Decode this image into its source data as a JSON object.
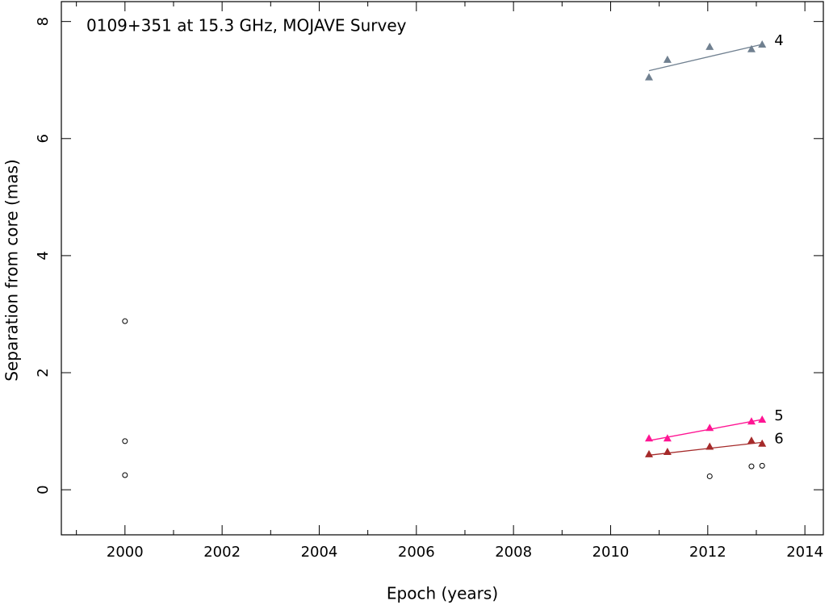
{
  "chart_data": {
    "type": "scatter",
    "title": "0109+351 at 15.3 GHz, MOJAVE Survey",
    "xlabel": "Epoch (years)",
    "ylabel": "Separation from core (mas)",
    "xlim": [
      1998.69,
      2014.38
    ],
    "ylim": [
      -0.77,
      8.34
    ],
    "xticks": [
      2000,
      2002,
      2004,
      2006,
      2008,
      2010,
      2012,
      2014
    ],
    "xticks_minor": [
      1999,
      2001,
      2003,
      2005,
      2007,
      2009,
      2011,
      2013
    ],
    "yticks": [
      0,
      2,
      4,
      6,
      8
    ],
    "series": [
      {
        "name": "4",
        "color": "#708090",
        "label_color": "#a8a8a8",
        "marker": "triangle",
        "x": [
          2010.79,
          2011.17,
          2012.04,
          2012.9,
          2013.12
        ],
        "y": [
          7.05,
          7.35,
          7.57,
          7.53,
          7.61
        ],
        "fit": {
          "x": [
            2010.79,
            2013.12
          ],
          "y": [
            7.16,
            7.61
          ]
        }
      },
      {
        "name": "5",
        "color": "#ff1493",
        "label_color": "#ff69b4",
        "marker": "triangle",
        "x": [
          2010.79,
          2011.17,
          2012.04,
          2012.9,
          2013.12
        ],
        "y": [
          0.88,
          0.88,
          1.06,
          1.17,
          1.2
        ],
        "fit": {
          "x": [
            2010.79,
            2013.12
          ],
          "y": [
            0.84,
            1.2
          ]
        }
      },
      {
        "name": "6",
        "color": "#a52a2a",
        "label_color": "#e08080",
        "marker": "triangle",
        "x": [
          2010.79,
          2011.17,
          2012.04,
          2012.9,
          2013.12
        ],
        "y": [
          0.61,
          0.65,
          0.74,
          0.84,
          0.79
        ],
        "fit": {
          "x": [
            2010.79,
            2013.12
          ],
          "y": [
            0.59,
            0.81
          ]
        }
      },
      {
        "color": "#000000",
        "marker": "circle",
        "x": [
          2000.0,
          2000.0,
          2000.0,
          2012.04,
          2012.9,
          2013.12
        ],
        "y": [
          2.88,
          0.83,
          0.25,
          0.23,
          0.4,
          0.41
        ]
      }
    ]
  }
}
